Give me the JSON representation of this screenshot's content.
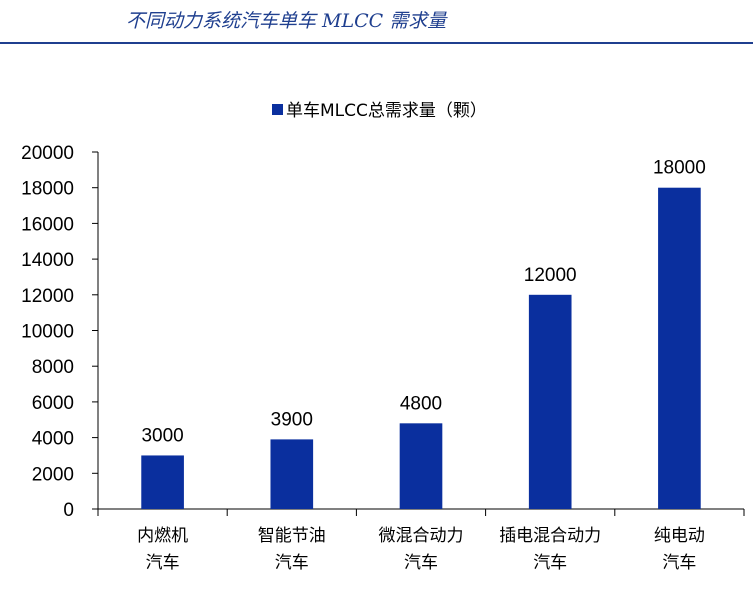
{
  "header": {
    "title": "不同动力系统汽车单车 MLCC 需求量"
  },
  "chart_data": {
    "type": "bar",
    "title": "",
    "xlabel": "",
    "ylabel": "",
    "categories": [
      [
        "内燃机",
        "汽车"
      ],
      [
        "智能节油",
        "汽车"
      ],
      [
        "微混合动力",
        "汽车"
      ],
      [
        "插电混合动力",
        "汽车"
      ],
      [
        "纯电动",
        "汽车"
      ]
    ],
    "series": [
      {
        "name": "单车MLCC总需求量（颗）",
        "values": [
          3000,
          3900,
          4800,
          12000,
          18000
        ],
        "color": "#0a2f9e"
      }
    ],
    "ylim": [
      0,
      20000
    ],
    "yticks": [
      0,
      2000,
      4000,
      6000,
      8000,
      10000,
      12000,
      14000,
      16000,
      18000,
      20000
    ],
    "grid": false,
    "legend": "top-center",
    "data_labels": true
  }
}
